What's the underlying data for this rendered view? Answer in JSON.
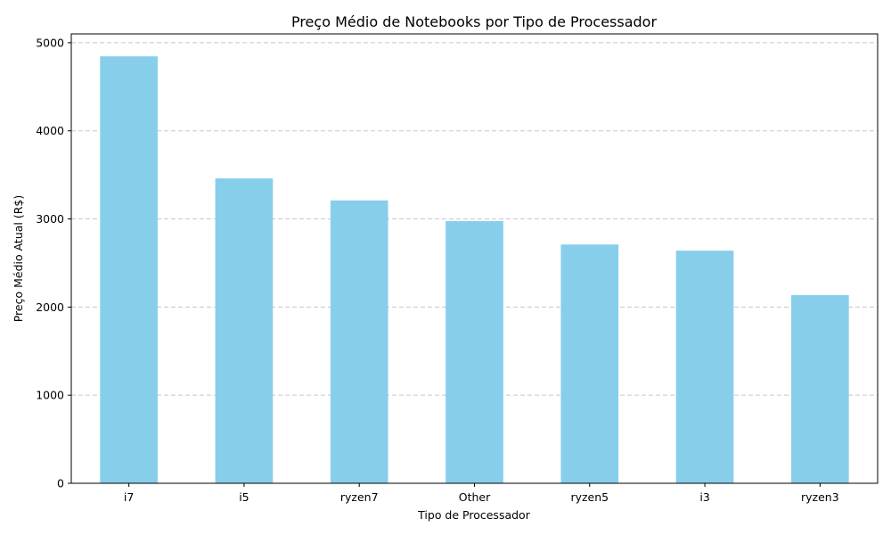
{
  "chart_data": {
    "type": "bar",
    "title": "Preço Médio de Notebooks por Tipo de Processador",
    "xlabel": "Tipo de Processador",
    "ylabel": "Preço Médio Atual (R$)",
    "categories": [
      "i7",
      "i5",
      "ryzen7",
      "Other",
      "ryzen5",
      "i3",
      "ryzen3"
    ],
    "values": [
      4845,
      3460,
      3210,
      2975,
      2710,
      2640,
      2135
    ],
    "ylim": [
      0,
      5100
    ],
    "yticks": [
      0,
      1000,
      2000,
      3000,
      4000,
      5000
    ],
    "ytick_labels": [
      "0",
      "1000",
      "2000",
      "3000",
      "4000",
      "5000"
    ],
    "grid": "y-dashed",
    "legend": "none",
    "colors": {
      "bar": "#87ceeb",
      "grid": "#c8c8c8",
      "axis": "#000000"
    }
  }
}
